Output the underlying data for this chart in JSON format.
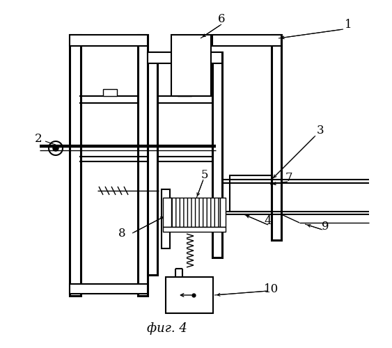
{
  "title": "фиг. 4",
  "bg_color": "#ffffff",
  "line_color": "#000000",
  "lw_thin": 1.0,
  "lw_med": 1.5,
  "lw_thick": 2.2
}
